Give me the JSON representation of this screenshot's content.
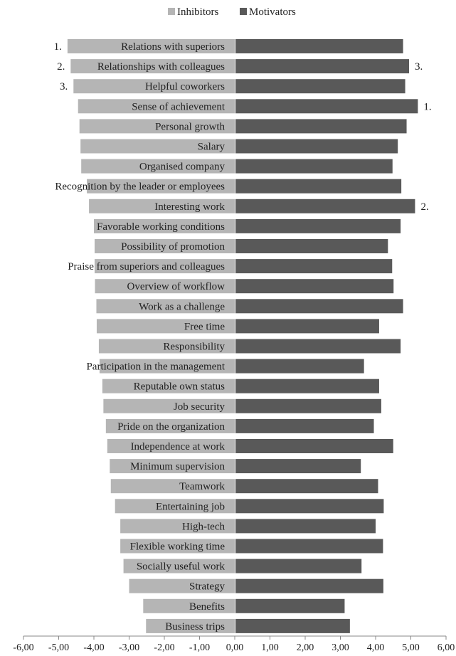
{
  "chart_data": {
    "type": "bar",
    "orientation": "horizontal",
    "legend": {
      "placement": "top",
      "entries": [
        {
          "label": "Inhibitors",
          "color": "#b5b5b5"
        },
        {
          "label": "Motivators",
          "color": "#595959"
        }
      ]
    },
    "categories": [
      "Relations with superiors",
      "Relationships with colleagues",
      "Helpful coworkers",
      "Sense of achievement",
      "Personal growth",
      "Salary",
      "Organised company",
      "Recognition by the leader or employees",
      "Interesting work",
      "Favorable working conditions",
      "Possibility of promotion",
      "Praise from superiors and colleagues",
      "Overview of workflow",
      "Work as a challenge",
      "Free time",
      "Responsibility",
      "Participation in the management",
      "Reputable own status",
      "Job security",
      "Pride on the organization",
      "Independence at work",
      "Minimum supervision",
      "Teamwork",
      "Entertaining job",
      "High-tech",
      "Flexible working time",
      "Socially useful work",
      "Strategy",
      "Benefits",
      "Business trips"
    ],
    "series": [
      {
        "name": "Inhibitors",
        "color": "#b5b5b5",
        "values": [
          -4.75,
          -4.66,
          -4.58,
          -4.45,
          -4.41,
          -4.38,
          -4.36,
          -4.2,
          -4.14,
          -4.0,
          -3.98,
          -3.98,
          -3.97,
          -3.93,
          -3.92,
          -3.86,
          -3.84,
          -3.76,
          -3.73,
          -3.66,
          -3.62,
          -3.55,
          -3.52,
          -3.4,
          -3.25,
          -3.25,
          -3.16,
          -3.0,
          -2.6,
          -2.52
        ],
        "rank_labels": [
          "1.",
          "2.",
          "3.",
          "",
          "",
          "",
          "",
          "",
          "",
          "",
          "",
          "",
          "",
          "",
          "",
          "",
          "",
          "",
          "",
          "",
          "",
          "",
          "",
          "",
          "",
          "",
          "",
          "",
          "",
          ""
        ]
      },
      {
        "name": "Motivators",
        "color": "#595959",
        "values": [
          4.78,
          4.95,
          4.84,
          5.2,
          4.88,
          4.63,
          4.48,
          4.73,
          5.12,
          4.71,
          4.35,
          4.47,
          4.51,
          4.78,
          4.1,
          4.71,
          3.67,
          4.1,
          4.16,
          3.95,
          4.5,
          3.58,
          4.07,
          4.23,
          4.0,
          4.21,
          3.6,
          4.22,
          3.12,
          3.27
        ],
        "rank_labels": [
          "",
          "3.",
          "",
          "1.",
          "",
          "",
          "",
          "",
          "2.",
          "",
          "",
          "",
          "",
          "",
          "",
          "",
          "",
          "",
          "",
          "",
          "",
          "",
          "",
          "",
          "",
          "",
          "",
          "",
          "",
          ""
        ]
      }
    ],
    "xlim": [
      -6,
      6
    ],
    "xticks": [
      "-6,00",
      "-5,00",
      "-4,00",
      "-3,00",
      "-2,00",
      "-1,00",
      "0,00",
      "1,00",
      "2,00",
      "3,00",
      "4,00",
      "5,00",
      "6,00"
    ],
    "title": "",
    "xlabel": "",
    "ylabel": "",
    "grid": false
  }
}
